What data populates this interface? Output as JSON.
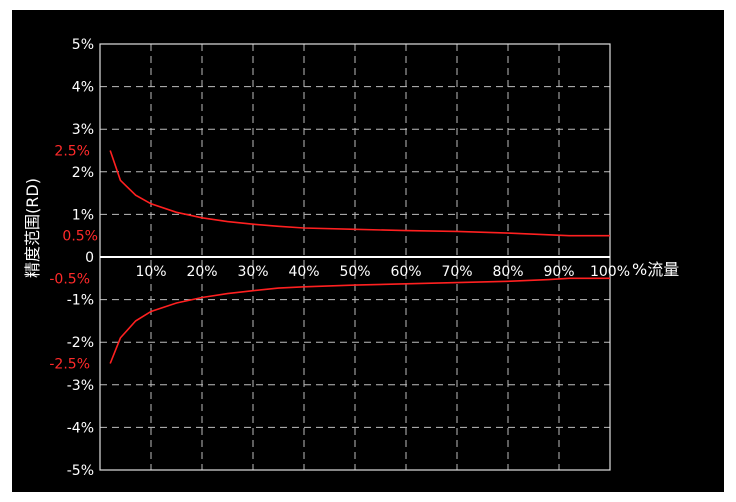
{
  "chart_data": {
    "type": "line",
    "title": "",
    "ylabel": "精度范围(RD)",
    "xlabel": "%流量",
    "y_ticks": [
      "5%",
      "4%",
      "3%",
      "2%",
      "1%",
      "0",
      "-1%",
      "-2%",
      "-3%",
      "-4%",
      "-5%"
    ],
    "y_tick_values": [
      5,
      4,
      3,
      2,
      1,
      0,
      -1,
      -2,
      -3,
      -4,
      -5
    ],
    "x_ticks": [
      "10%",
      "20%",
      "30%",
      "40%",
      "50%",
      "60%",
      "70%",
      "80%",
      "90%",
      "100%"
    ],
    "x_tick_values": [
      10,
      20,
      30,
      40,
      50,
      60,
      70,
      80,
      90,
      100
    ],
    "ylim": [
      -5,
      5
    ],
    "xlim": [
      0,
      100
    ],
    "grid": true,
    "grid_style": "dashed",
    "red_labels": [
      {
        "text": "2.5%",
        "value": 2.5
      },
      {
        "text": "0.5%",
        "value": 0.5
      },
      {
        "text": "-0.5%",
        "value": -0.5
      },
      {
        "text": "-2.5%",
        "value": -2.5
      }
    ],
    "series": [
      {
        "color": "#ff2020",
        "x": [
          2,
          4,
          7,
          10,
          15,
          20,
          25,
          30,
          35,
          40,
          50,
          60,
          70,
          80,
          88,
          92,
          100
        ],
        "y": [
          2.5,
          1.8,
          1.45,
          1.25,
          1.05,
          0.92,
          0.83,
          0.77,
          0.72,
          0.68,
          0.65,
          0.62,
          0.6,
          0.56,
          0.52,
          0.5,
          0.5
        ]
      },
      {
        "color": "#ff2020",
        "x": [
          2,
          4,
          7,
          10,
          15,
          20,
          25,
          30,
          35,
          40,
          50,
          60,
          70,
          80,
          88,
          92,
          100
        ],
        "y": [
          -2.5,
          -1.9,
          -1.5,
          -1.28,
          -1.08,
          -0.95,
          -0.86,
          -0.79,
          -0.73,
          -0.7,
          -0.66,
          -0.63,
          -0.6,
          -0.57,
          -0.53,
          -0.5,
          -0.5
        ]
      }
    ]
  }
}
